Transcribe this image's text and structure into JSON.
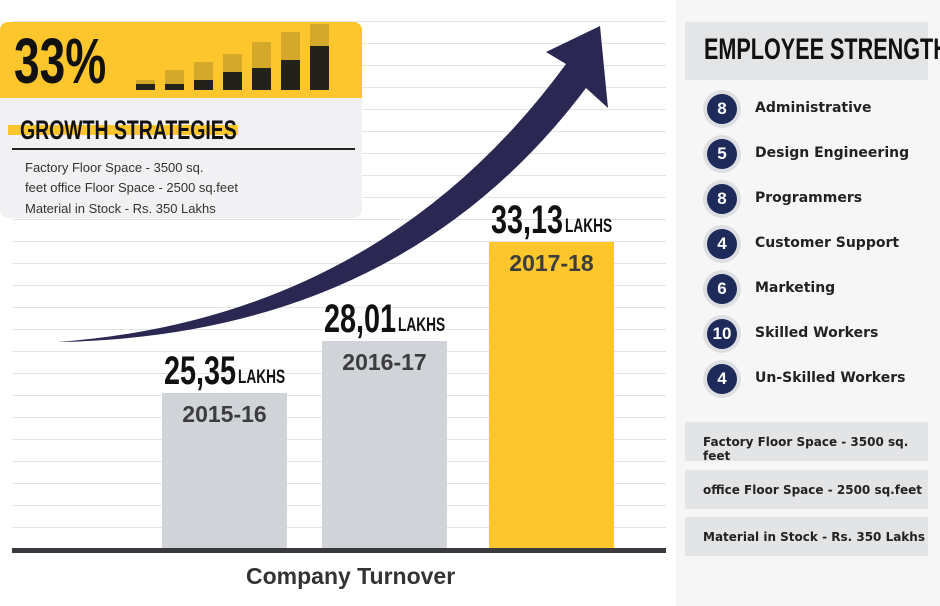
{
  "growth": {
    "percent": "33%",
    "title": "GROWTH STRATEGIES",
    "lines": [
      "Factory Floor Space - 3500 sq.",
      "feet office Floor Space - 2500 sq.feet",
      "Material in Stock - Rs. 350 Lakhs"
    ],
    "accent": "#fcc62c"
  },
  "chart_data": {
    "type": "bar",
    "title": "Company Turnover",
    "categories": [
      "2015-16",
      "2016-17",
      "2017-18"
    ],
    "values": [
      25.35,
      28.01,
      33.13
    ],
    "value_labels": [
      "25,35",
      "28,01",
      "33,13"
    ],
    "unit": "LAKHS",
    "colors": [
      "#d0d3d8",
      "#d0d3d8",
      "#fcc62c"
    ],
    "ylim": [
      17.3,
      44.6
    ],
    "trend_arrow": "up",
    "arrow_color": "#2a2852"
  },
  "employee": {
    "title": "EMPLOYEE STRENGTH",
    "items": [
      {
        "count": "8",
        "label": "Administrative"
      },
      {
        "count": "5",
        "label": "Design Engineering"
      },
      {
        "count": "8",
        "label": "Programmers"
      },
      {
        "count": "4",
        "label": "Customer Support"
      },
      {
        "count": "6",
        "label": "Marketing"
      },
      {
        "count": "10",
        "label": "Skilled Workers"
      },
      {
        "count": "4",
        "label": "Un-Skilled Workers"
      }
    ]
  },
  "info": [
    "Factory Floor Space - 3500 sq. feet",
    "office Floor Space - 2500 sq.feet",
    "Material in Stock - Rs. 350 Lakhs"
  ]
}
